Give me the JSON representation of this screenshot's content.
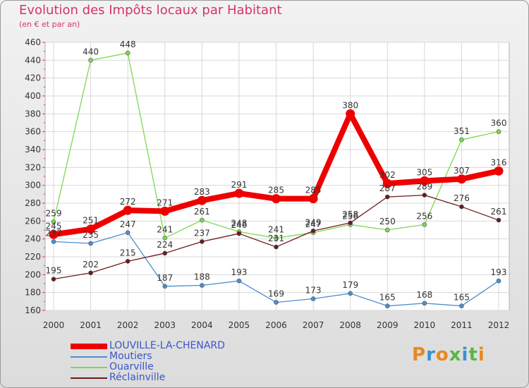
{
  "title": "Evolution des Impôts locaux par Habitant",
  "subtitle": "(en € et par an)",
  "logo_text": "Proxiti",
  "chart_data": {
    "type": "line",
    "title": "Evolution des Impôts locaux par Habitant",
    "subtitle": "(en € et par an)",
    "xlabel": "",
    "ylabel": "",
    "categories": [
      "2000",
      "2001",
      "2002",
      "2003",
      "2004",
      "2005",
      "2006",
      "2007",
      "2008",
      "2009",
      "2010",
      "2011",
      "2012"
    ],
    "ylim": [
      160,
      460
    ],
    "yticks": [
      160,
      180,
      200,
      220,
      240,
      260,
      280,
      300,
      320,
      340,
      360,
      380,
      400,
      420,
      440,
      460
    ],
    "grid": true,
    "legend_position": "bottom-left",
    "series": [
      {
        "name": "LOUVILLE-LA-CHENARD",
        "color": "#ee0000",
        "values": [
          245,
          251,
          272,
          271,
          283,
          291,
          285,
          285,
          380,
          302,
          305,
          307,
          316
        ]
      },
      {
        "name": "Moutiers",
        "color": "#4a8fd0",
        "values": [
          237,
          235,
          247,
          187,
          188,
          193,
          169,
          173,
          179,
          165,
          168,
          165,
          193
        ]
      },
      {
        "name": "Ouarville",
        "color": "#7dd850",
        "values": [
          259,
          440,
          448,
          241,
          261,
          248,
          241,
          247,
          256,
          250,
          256,
          351,
          360
        ]
      },
      {
        "name": "Réclainville",
        "color": "#6b1a1a",
        "values": [
          195,
          202,
          215,
          224,
          237,
          246,
          231,
          249,
          258,
          287,
          289,
          276,
          261
        ]
      }
    ]
  }
}
